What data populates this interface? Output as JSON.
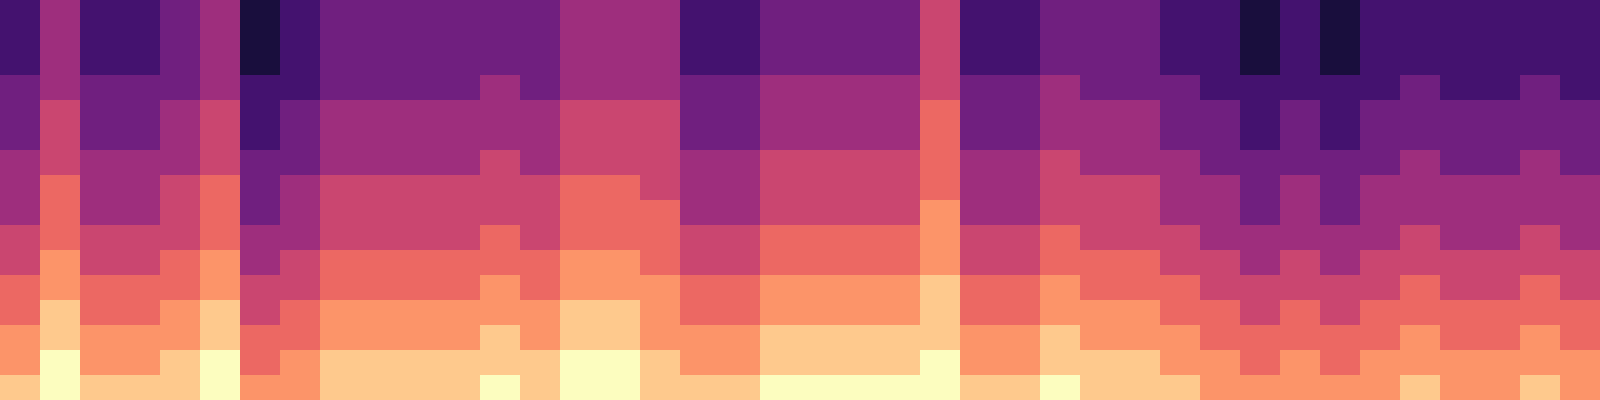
{
  "chart_data": {
    "type": "heatmap",
    "tick_labels": false,
    "color_range": [
      0,
      9
    ],
    "cells": [
      [
        2,
        4,
        2,
        2,
        3,
        4,
        1,
        2,
        3,
        3,
        3,
        3,
        3,
        3,
        4,
        4,
        4,
        2,
        2,
        3,
        3,
        3,
        3,
        5,
        2,
        2,
        3,
        3,
        3,
        2,
        2,
        1,
        2,
        1,
        2,
        2,
        2,
        2,
        2,
        2
      ],
      [
        2,
        4,
        2,
        2,
        3,
        4,
        1,
        2,
        3,
        3,
        3,
        3,
        3,
        3,
        4,
        4,
        4,
        2,
        2,
        3,
        3,
        3,
        3,
        5,
        2,
        2,
        3,
        3,
        3,
        2,
        2,
        1,
        2,
        1,
        2,
        2,
        2,
        2,
        2,
        2
      ],
      [
        2,
        4,
        2,
        2,
        3,
        4,
        1,
        2,
        3,
        3,
        3,
        3,
        3,
        3,
        4,
        4,
        4,
        2,
        2,
        3,
        3,
        3,
        3,
        5,
        2,
        2,
        3,
        3,
        3,
        2,
        2,
        1,
        2,
        1,
        2,
        2,
        2,
        2,
        2,
        2
      ],
      [
        3,
        4,
        3,
        3,
        3,
        4,
        2,
        2,
        3,
        3,
        3,
        3,
        4,
        3,
        4,
        4,
        4,
        3,
        3,
        4,
        4,
        4,
        4,
        5,
        3,
        3,
        4,
        3,
        3,
        3,
        2,
        2,
        2,
        2,
        2,
        3,
        2,
        2,
        3,
        2
      ],
      [
        3,
        5,
        3,
        3,
        4,
        5,
        2,
        3,
        4,
        4,
        4,
        4,
        4,
        4,
        5,
        5,
        5,
        3,
        3,
        4,
        4,
        4,
        4,
        6,
        3,
        3,
        4,
        4,
        4,
        3,
        3,
        2,
        3,
        2,
        3,
        3,
        3,
        3,
        3,
        3
      ],
      [
        3,
        5,
        3,
        3,
        4,
        5,
        2,
        3,
        4,
        4,
        4,
        4,
        4,
        4,
        5,
        5,
        5,
        3,
        3,
        4,
        4,
        4,
        4,
        6,
        3,
        3,
        4,
        4,
        4,
        3,
        3,
        2,
        3,
        2,
        3,
        3,
        3,
        3,
        3,
        3
      ],
      [
        4,
        5,
        4,
        4,
        4,
        5,
        3,
        3,
        4,
        4,
        4,
        4,
        5,
        4,
        5,
        5,
        5,
        4,
        4,
        5,
        5,
        5,
        5,
        6,
        4,
        4,
        5,
        4,
        4,
        4,
        3,
        3,
        3,
        3,
        3,
        4,
        3,
        3,
        4,
        3
      ],
      [
        4,
        6,
        4,
        4,
        5,
        6,
        3,
        4,
        5,
        5,
        5,
        5,
        5,
        5,
        6,
        6,
        5,
        4,
        4,
        5,
        5,
        5,
        5,
        6,
        4,
        4,
        5,
        5,
        5,
        4,
        4,
        3,
        4,
        3,
        4,
        4,
        4,
        4,
        4,
        4
      ],
      [
        4,
        6,
        4,
        4,
        5,
        6,
        3,
        4,
        5,
        5,
        5,
        5,
        5,
        5,
        6,
        6,
        6,
        4,
        4,
        5,
        5,
        5,
        5,
        7,
        4,
        4,
        5,
        5,
        5,
        4,
        4,
        3,
        4,
        3,
        4,
        4,
        4,
        4,
        4,
        4
      ],
      [
        5,
        6,
        5,
        5,
        5,
        6,
        4,
        4,
        5,
        5,
        5,
        5,
        6,
        5,
        6,
        6,
        6,
        5,
        5,
        6,
        6,
        6,
        6,
        7,
        5,
        5,
        6,
        5,
        5,
        5,
        4,
        4,
        4,
        4,
        4,
        5,
        4,
        4,
        5,
        4
      ],
      [
        5,
        7,
        5,
        5,
        6,
        7,
        4,
        5,
        6,
        6,
        6,
        6,
        6,
        6,
        7,
        7,
        6,
        5,
        5,
        6,
        6,
        6,
        6,
        7,
        5,
        5,
        6,
        6,
        6,
        5,
        5,
        4,
        5,
        4,
        5,
        5,
        5,
        5,
        5,
        5
      ],
      [
        6,
        7,
        6,
        6,
        6,
        7,
        5,
        5,
        6,
        6,
        6,
        6,
        7,
        6,
        7,
        7,
        7,
        6,
        6,
        7,
        7,
        7,
        7,
        8,
        6,
        6,
        7,
        6,
        6,
        6,
        5,
        5,
        5,
        5,
        5,
        6,
        5,
        5,
        6,
        5
      ],
      [
        6,
        8,
        6,
        6,
        7,
        8,
        5,
        6,
        7,
        7,
        7,
        7,
        7,
        7,
        8,
        8,
        7,
        6,
        6,
        7,
        7,
        7,
        7,
        8,
        6,
        6,
        7,
        7,
        7,
        6,
        6,
        5,
        6,
        5,
        6,
        6,
        6,
        6,
        6,
        6
      ],
      [
        7,
        8,
        7,
        7,
        7,
        8,
        6,
        6,
        7,
        7,
        7,
        7,
        8,
        7,
        8,
        8,
        7,
        7,
        7,
        8,
        8,
        8,
        8,
        8,
        7,
        7,
        8,
        7,
        7,
        7,
        6,
        6,
        6,
        6,
        6,
        7,
        6,
        6,
        7,
        6
      ],
      [
        7,
        9,
        7,
        7,
        8,
        9,
        6,
        7,
        8,
        8,
        8,
        8,
        8,
        8,
        9,
        9,
        8,
        7,
        7,
        8,
        8,
        8,
        8,
        9,
        7,
        7,
        8,
        8,
        8,
        7,
        7,
        6,
        7,
        6,
        7,
        7,
        7,
        7,
        7,
        7
      ],
      [
        8,
        9,
        8,
        8,
        8,
        9,
        7,
        7,
        8,
        8,
        8,
        8,
        9,
        8,
        9,
        9,
        8,
        8,
        8,
        9,
        9,
        9,
        9,
        9,
        8,
        8,
        9,
        8,
        8,
        8,
        7,
        7,
        7,
        7,
        7,
        8,
        7,
        7,
        8,
        7
      ]
    ]
  }
}
